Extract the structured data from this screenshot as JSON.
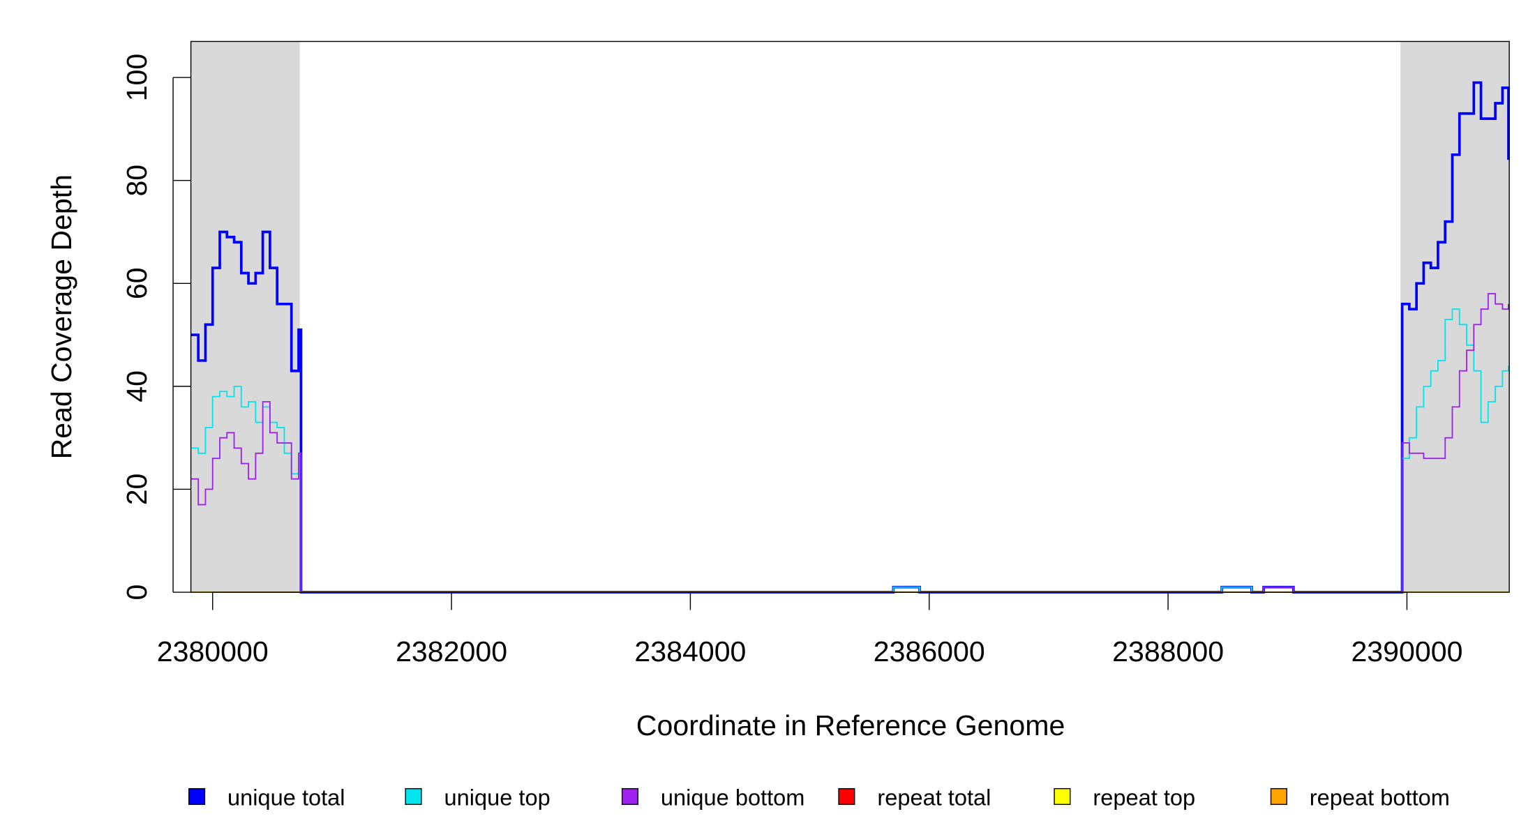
{
  "chart_data": {
    "type": "line",
    "step": true,
    "xlabel": "Coordinate in Reference Genome",
    "ylabel": "Read Coverage Depth",
    "xlim": [
      2379818,
      2390857
    ],
    "ylim": [
      0,
      107
    ],
    "xticks": [
      2380000,
      2382000,
      2384000,
      2386000,
      2388000,
      2390000
    ],
    "yticks": [
      0,
      20,
      40,
      60,
      80,
      100
    ],
    "highlight_regions": [
      [
        2379818,
        2380730
      ],
      [
        2389946,
        2390857
      ]
    ],
    "highlight_color": "#d9d9d9",
    "x": [
      2379820,
      2379880,
      2379940,
      2380000,
      2380060,
      2380120,
      2380180,
      2380240,
      2380300,
      2380360,
      2380420,
      2380480,
      2380540,
      2380600,
      2380660,
      2380720,
      2380740,
      2385700,
      2385920,
      2388450,
      2388700,
      2388800,
      2389050,
      2389940,
      2389960,
      2390020,
      2390080,
      2390140,
      2390200,
      2390260,
      2390320,
      2390380,
      2390440,
      2390500,
      2390560,
      2390620,
      2390680,
      2390740,
      2390800,
      2390850
    ],
    "series": [
      {
        "name": "unique total",
        "color": "#0000ff",
        "width": 2.6,
        "values": [
          50,
          45,
          52,
          63,
          70,
          69,
          68,
          62,
          60,
          62,
          70,
          63,
          56,
          56,
          43,
          51,
          0,
          1,
          0,
          1,
          0,
          1,
          0,
          0,
          56,
          55,
          60,
          64,
          63,
          68,
          72,
          85,
          93,
          93,
          99,
          92,
          92,
          95,
          98,
          84
        ]
      },
      {
        "name": "unique top",
        "color": "#00e5ee",
        "width": 1.3,
        "values": [
          28,
          27,
          32,
          38,
          39,
          38,
          40,
          36,
          37,
          33,
          36,
          33,
          32,
          27,
          23,
          27,
          0,
          1,
          0,
          1,
          0,
          0,
          0,
          0,
          26,
          30,
          36,
          40,
          43,
          45,
          53,
          55,
          52,
          48,
          43,
          33,
          37,
          40,
          43,
          44
        ]
      },
      {
        "name": "unique bottom",
        "color": "#a020f0",
        "width": 1.3,
        "values": [
          22,
          17,
          20,
          26,
          30,
          31,
          28,
          25,
          22,
          27,
          37,
          31,
          29,
          29,
          22,
          27,
          0,
          0,
          0,
          0,
          0,
          1,
          0,
          0,
          29,
          27,
          27,
          26,
          26,
          26,
          30,
          36,
          43,
          47,
          52,
          55,
          58,
          56,
          55,
          56
        ]
      },
      {
        "name": "repeat total",
        "color": "#ff0000",
        "width": 1.3,
        "values": [
          0,
          0,
          0,
          0,
          0,
          0,
          0,
          0,
          0,
          0,
          0,
          0,
          0,
          0,
          0,
          0,
          0,
          0,
          0,
          0,
          0,
          0,
          0,
          0,
          0,
          0,
          0,
          0,
          0,
          0,
          0,
          0,
          0,
          0,
          0,
          0,
          0,
          0,
          0,
          0
        ]
      },
      {
        "name": "repeat top",
        "color": "#ffff00",
        "width": 1.3,
        "values": [
          0,
          0,
          0,
          0,
          0,
          0,
          0,
          0,
          0,
          0,
          0,
          0,
          0,
          0,
          0,
          0,
          0,
          0,
          0,
          0,
          0,
          0,
          0,
          0,
          0,
          0,
          0,
          0,
          0,
          0,
          0,
          0,
          0,
          0,
          0,
          0,
          0,
          0,
          0,
          0
        ]
      },
      {
        "name": "repeat bottom",
        "color": "#ffa500",
        "width": 1.3,
        "values": [
          0,
          0,
          0,
          0,
          0,
          0,
          0,
          0,
          0,
          0,
          0,
          0,
          0,
          0,
          0,
          0,
          0,
          0,
          0,
          0,
          0,
          0,
          0,
          0,
          0,
          0,
          0,
          0,
          0,
          0,
          0,
          0,
          0,
          0,
          0,
          0,
          0,
          0,
          0,
          0
        ]
      }
    ],
    "legend": "bottom"
  }
}
